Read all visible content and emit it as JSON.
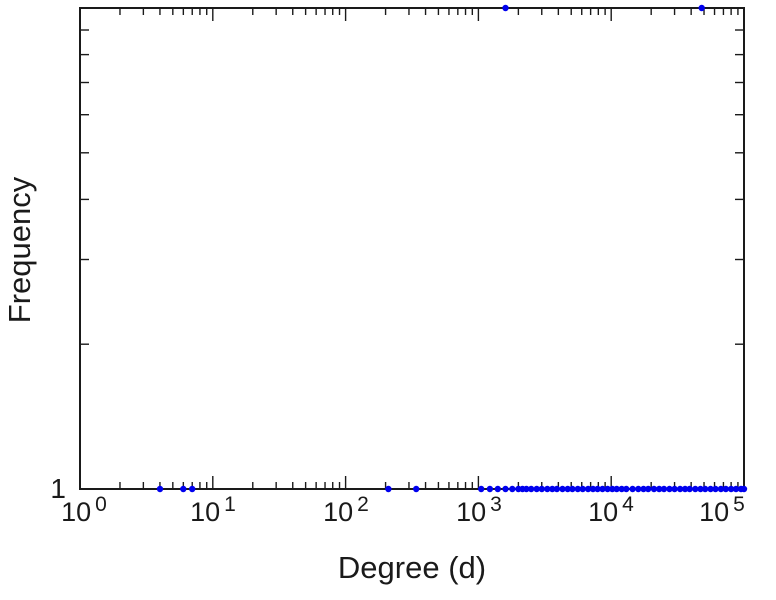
{
  "chart_data": {
    "type": "scatter",
    "title": "",
    "xlabel": "Degree (d)",
    "ylabel": "Frequency",
    "x_scale": "log",
    "y_scale": "log",
    "xlim": [
      1,
      100000
    ],
    "ylim": [
      1,
      10
    ],
    "grid": false,
    "legend": "none",
    "axis_color": "#1a1a1a",
    "marker": {
      "shape": "circle",
      "color": "#0000ee",
      "radius": 3.2
    },
    "x_ticks": [
      {
        "base": "10",
        "exp": "0",
        "value": 1
      },
      {
        "base": "10",
        "exp": "1",
        "value": 10
      },
      {
        "base": "10",
        "exp": "2",
        "value": 100
      },
      {
        "base": "10",
        "exp": "3",
        "value": 1000
      },
      {
        "base": "10",
        "exp": "4",
        "value": 10000
      },
      {
        "base": "10",
        "exp": "5",
        "value": 100000
      }
    ],
    "y_ticks": [
      {
        "label": "1",
        "value": 1
      }
    ],
    "points": [
      [
        4,
        1
      ],
      [
        6,
        1
      ],
      [
        7,
        1
      ],
      [
        210,
        1
      ],
      [
        340,
        1
      ],
      [
        1050,
        1
      ],
      [
        1220,
        1
      ],
      [
        1400,
        1
      ],
      [
        1600,
        1
      ],
      [
        1800,
        1
      ],
      [
        2000,
        1
      ],
      [
        2150,
        1
      ],
      [
        2300,
        1
      ],
      [
        2500,
        1
      ],
      [
        2750,
        1
      ],
      [
        3000,
        1
      ],
      [
        3300,
        1
      ],
      [
        3600,
        1
      ],
      [
        3900,
        1
      ],
      [
        4300,
        1
      ],
      [
        4700,
        1
      ],
      [
        5100,
        1
      ],
      [
        5600,
        1
      ],
      [
        6100,
        1
      ],
      [
        6700,
        1
      ],
      [
        7300,
        1
      ],
      [
        7900,
        1
      ],
      [
        8600,
        1
      ],
      [
        9400,
        1
      ],
      [
        10200,
        1
      ],
      [
        11000,
        1
      ],
      [
        12000,
        1
      ],
      [
        13000,
        1
      ],
      [
        14500,
        1
      ],
      [
        16000,
        1
      ],
      [
        17500,
        1
      ],
      [
        19000,
        1
      ],
      [
        21000,
        1
      ],
      [
        23000,
        1
      ],
      [
        25000,
        1
      ],
      [
        27500,
        1
      ],
      [
        30000,
        1
      ],
      [
        33000,
        1
      ],
      [
        36000,
        1
      ],
      [
        39000,
        1
      ],
      [
        43000,
        1
      ],
      [
        47000,
        1
      ],
      [
        51000,
        1
      ],
      [
        56000,
        1
      ],
      [
        61000,
        1
      ],
      [
        67000,
        1
      ],
      [
        73000,
        1
      ],
      [
        80000,
        1
      ],
      [
        87000,
        1
      ],
      [
        95000,
        1
      ],
      [
        100000,
        1
      ],
      [
        1600,
        10
      ],
      [
        48000,
        10
      ]
    ]
  }
}
